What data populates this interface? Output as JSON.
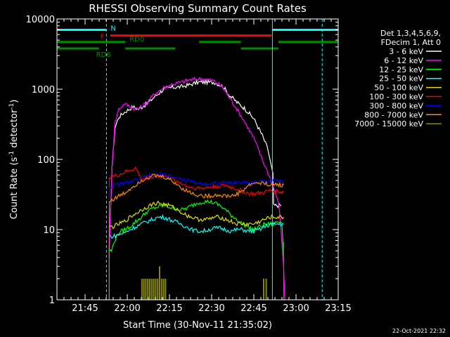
{
  "chart_data": {
    "type": "line",
    "title": "RHESSI Observing Summary Count Rates",
    "xlabel": "Start Time (30-Nov-11 21:35:02)",
    "ylabel_main": "Count Rate (s",
    "ylabel_sup1": "-1",
    "ylabel_mid": " detector",
    "ylabel_sup2": "-1",
    "ylabel_end": ")",
    "yscale": "log",
    "xlim_min": [
      0,
      100
    ],
    "ylim": [
      1,
      10000
    ],
    "x_ticks": [
      {
        "t": 10,
        "label": "21:45"
      },
      {
        "t": 25,
        "label": "22:00"
      },
      {
        "t": 40,
        "label": "22:15"
      },
      {
        "t": 55,
        "label": "22:30"
      },
      {
        "t": 70,
        "label": "22:45"
      },
      {
        "t": 85,
        "label": "23:00"
      },
      {
        "t": 100,
        "label": "23:15"
      }
    ],
    "y_ticks": [
      {
        "v": 1,
        "label": "1"
      },
      {
        "v": 10,
        "label": "10"
      },
      {
        "v": 100,
        "label": "100"
      },
      {
        "v": 1000,
        "label": "1000"
      },
      {
        "v": 10000,
        "label": "10000"
      }
    ],
    "legend_header": [
      "Det 1,3,4,5,6,9,",
      "FDecim 1, Att 0"
    ],
    "series": [
      {
        "name": "3 - 6 keV",
        "color": "#ffffff",
        "x": [
          18.6,
          19.6,
          20.6,
          22,
          24,
          27,
          29,
          32,
          35,
          38,
          41,
          44,
          47,
          50,
          53,
          56,
          59,
          61,
          64,
          67,
          70,
          73,
          75,
          76.8,
          77,
          79.8
        ],
        "values": [
          5,
          80,
          280,
          400,
          470,
          560,
          520,
          620,
          800,
          1000,
          1060,
          1080,
          1150,
          1250,
          1260,
          1250,
          1100,
          850,
          650,
          520,
          380,
          220,
          140,
          60,
          22,
          22
        ]
      },
      {
        "name": "6 - 12 keV",
        "color": "#ff00ff",
        "x": [
          18.6,
          19.6,
          20.6,
          22,
          24,
          27,
          29,
          32,
          35,
          38,
          41,
          44,
          47,
          50,
          53,
          56,
          59,
          61,
          64,
          67,
          70,
          73,
          75,
          77,
          79,
          80.6,
          81
        ],
        "values": [
          5,
          80,
          330,
          520,
          620,
          540,
          520,
          650,
          880,
          1050,
          1180,
          1250,
          1350,
          1400,
          1400,
          1300,
          1050,
          800,
          520,
          330,
          200,
          100,
          65,
          40,
          22,
          3,
          1
        ]
      },
      {
        "name": "12 - 25 keV",
        "color": "#00ff00",
        "x": [
          18.6,
          19.4,
          20.5,
          22,
          24,
          26,
          28,
          30,
          32,
          34,
          36,
          38,
          40,
          42,
          44,
          46,
          48,
          50,
          52,
          54,
          56,
          58,
          60,
          62,
          64,
          66,
          68,
          70,
          72,
          74,
          76,
          77,
          78.5,
          80,
          80.6
        ],
        "values": [
          5,
          5,
          7,
          9,
          10,
          11,
          13,
          15,
          18,
          20,
          21,
          22,
          21,
          20,
          19,
          20,
          22,
          24,
          25,
          25,
          24,
          22,
          19,
          16,
          14,
          12,
          11,
          10,
          11,
          12,
          12,
          12,
          13,
          13,
          4
        ]
      },
      {
        "name": "25 - 50 keV",
        "color": "#00ffff",
        "x": [
          18.6,
          20,
          22,
          24,
          26,
          28,
          30,
          32,
          34,
          36,
          38,
          40,
          42,
          44,
          46,
          48,
          50,
          52,
          54,
          56,
          58,
          60,
          62,
          64,
          66,
          68,
          70,
          72,
          74,
          76,
          77,
          78.5,
          80,
          80.6
        ],
        "values": [
          8,
          8,
          8.5,
          9,
          10,
          11,
          12,
          13,
          14,
          15,
          15,
          14,
          13,
          12,
          11,
          10,
          9.5,
          9.5,
          10,
          10.5,
          10.5,
          10,
          9.5,
          10,
          10,
          9.5,
          9.5,
          10,
          11,
          12,
          12,
          12,
          12,
          12
        ]
      },
      {
        "name": "50 - 100 keV",
        "color": "#dddd00",
        "x": [
          18.6,
          20,
          22,
          24,
          26,
          28,
          30,
          32,
          34,
          36,
          38,
          40,
          42,
          44,
          46,
          48,
          50,
          52,
          54,
          56,
          58,
          60,
          62,
          64,
          66,
          68,
          70,
          72,
          74,
          76,
          77,
          78.5,
          80,
          80.6
        ],
        "values": [
          11,
          11,
          12,
          13,
          15,
          17,
          19,
          21,
          23,
          24,
          23,
          22,
          20,
          18,
          16,
          15,
          14,
          14,
          14,
          15,
          15,
          14,
          13,
          12,
          12,
          12,
          12,
          13,
          14,
          15,
          15,
          15,
          15,
          15
        ]
      },
      {
        "name": "100 - 300 keV",
        "color": "#ff0000",
        "x": [
          18.6,
          20,
          22,
          24,
          26,
          28,
          30,
          32,
          34,
          36,
          38,
          40,
          42,
          44,
          46,
          48,
          50,
          52,
          54,
          56,
          58,
          60,
          62,
          64,
          66,
          68,
          70,
          72,
          74,
          76,
          77,
          78.5,
          80,
          80.6
        ],
        "values": [
          55,
          57,
          60,
          65,
          70,
          75,
          52,
          55,
          57,
          58,
          57,
          54,
          50,
          46,
          42,
          40,
          39,
          39,
          40,
          41,
          42,
          42,
          40,
          38,
          35,
          33,
          32,
          33,
          34,
          36,
          36,
          35,
          34,
          34
        ]
      },
      {
        "name": "300 - 800 keV",
        "color": "#0000ff",
        "x": [
          18.6,
          20,
          22,
          24,
          26,
          28,
          30,
          32,
          34,
          36,
          38,
          40,
          42,
          44,
          46,
          48,
          50,
          52,
          54,
          56,
          58,
          60,
          62,
          64,
          66,
          68,
          70,
          72,
          74,
          76,
          77,
          78.5,
          80,
          80.6
        ],
        "values": [
          40,
          42,
          44,
          46,
          48,
          50,
          54,
          58,
          60,
          61,
          60,
          58,
          55,
          52,
          50,
          48,
          46,
          45,
          45,
          46,
          46,
          46,
          46,
          47,
          47,
          47,
          47,
          48,
          49,
          50,
          50,
          50,
          50,
          50
        ]
      },
      {
        "name": "800 - 7000 keV",
        "color": "#ff8800",
        "x": [
          18.6,
          20,
          22,
          24,
          26,
          28,
          30,
          32,
          34,
          36,
          38,
          40,
          42,
          44,
          46,
          48,
          50,
          52,
          54,
          56,
          58,
          60,
          62,
          64,
          66,
          68,
          70,
          72,
          74,
          76,
          77,
          78.5,
          80,
          80.6
        ],
        "values": [
          25,
          27,
          30,
          33,
          38,
          44,
          50,
          55,
          58,
          58,
          56,
          52,
          46,
          40,
          36,
          33,
          31,
          30,
          30,
          31,
          31,
          30,
          30,
          32,
          36,
          42,
          46,
          46,
          45,
          44,
          44,
          44,
          43,
          43
        ]
      },
      {
        "name": "7000 - 15000 keV",
        "color": "#888800",
        "x": [
          18.6,
          20,
          22,
          24,
          26,
          28,
          30,
          32,
          34,
          36,
          38,
          40,
          42,
          44,
          46,
          48,
          50,
          52,
          54,
          56,
          58,
          60,
          62,
          64,
          66,
          68,
          70,
          72,
          74,
          76,
          77,
          78.5,
          80,
          80.6
        ],
        "values": [
          1,
          1,
          1,
          1,
          1,
          1,
          1,
          1,
          1,
          1,
          1,
          1,
          1,
          1,
          1,
          1,
          1,
          1,
          1,
          1,
          1,
          1,
          1,
          1,
          1,
          1,
          1,
          1,
          1,
          1,
          1,
          1,
          1,
          1
        ]
      }
    ],
    "bursts_7000": [
      {
        "t": 30.2,
        "v": 2.0
      },
      {
        "t": 30.9,
        "v": 2.0
      },
      {
        "t": 31.6,
        "v": 2.0
      },
      {
        "t": 32.3,
        "v": 2.0
      },
      {
        "t": 33.0,
        "v": 2.0
      },
      {
        "t": 33.7,
        "v": 2.0
      },
      {
        "t": 34.4,
        "v": 2.0
      },
      {
        "t": 35.1,
        "v": 2.0
      },
      {
        "t": 35.8,
        "v": 2.0
      },
      {
        "t": 36.5,
        "v": 3.0
      },
      {
        "t": 37.2,
        "v": 2.0
      },
      {
        "t": 37.9,
        "v": 2.0
      },
      {
        "t": 38.6,
        "v": 2.0
      },
      {
        "t": 73.5,
        "v": 2.0
      },
      {
        "t": 74.4,
        "v": 2.0
      }
    ],
    "status_bars": [
      {
        "label": "N",
        "color": "#00ffff",
        "segments": [
          [
            0,
            17.6
          ],
          [
            76.6,
            100
          ]
        ],
        "value": 7000
      },
      {
        "label": "F",
        "color": "#ff0000",
        "segments": [
          [
            18.9,
            76.3
          ]
        ],
        "value": 5800
      },
      {
        "label": "RD0",
        "color": "#008800",
        "segments": [
          [
            0,
            24.3
          ],
          [
            50.5,
            65.4
          ],
          [
            78.7,
            100
          ]
        ],
        "value": 4700
      },
      {
        "label": "RD6",
        "color": "#008800",
        "segments": [
          [
            0,
            14.9
          ],
          [
            24.3,
            42.0
          ],
          [
            65.4,
            78.7
          ]
        ],
        "value": 3800
      }
    ],
    "dashed_lines": [
      {
        "t": 17.6,
        "color": "#00ffff"
      },
      {
        "t": 94.3,
        "color": "#00ffff"
      }
    ],
    "solid_lines": [
      {
        "t": 76.6,
        "color": "#00ffff"
      }
    ],
    "timestamp": "22-Oct-2021 22:32"
  }
}
